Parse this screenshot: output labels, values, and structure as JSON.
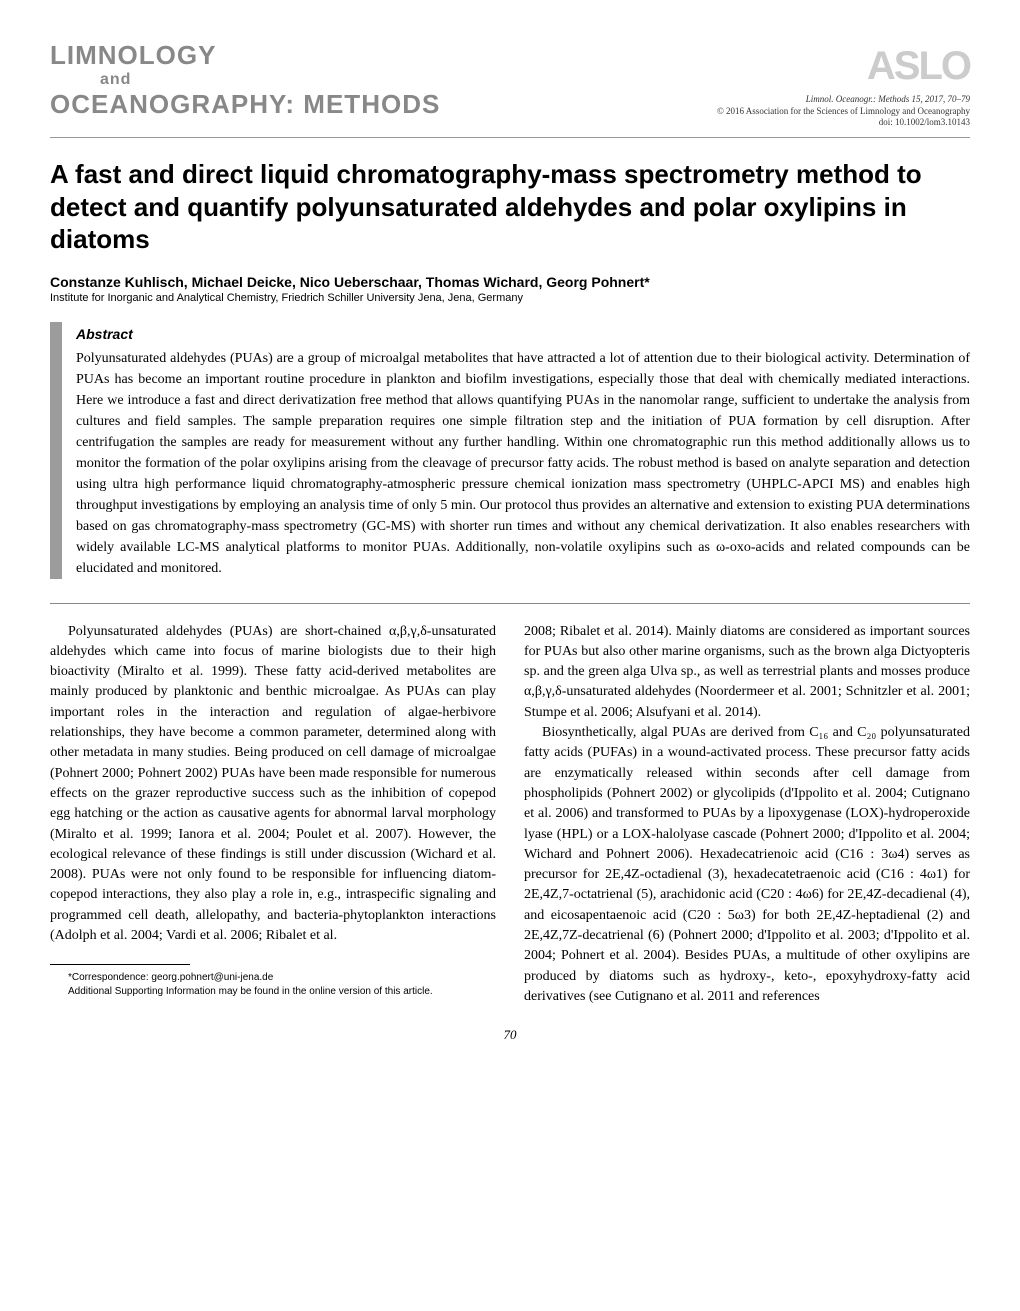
{
  "header": {
    "journal_line1": "LIMNOLOGY",
    "journal_and": "and",
    "journal_line2": "OCEANOGRAPHY: METHODS",
    "publisher_logo": "ASLO",
    "citation_line": "Limnol. Oceanogr.: Methods 15, 2017, 70–79",
    "copyright_line": "© 2016 Association for the Sciences of Limnology and Oceanography",
    "doi_line": "doi: 10.1002/lom3.10143"
  },
  "article": {
    "title": "A fast and direct liquid chromatography-mass spectrometry method to detect and quantify polyunsaturated aldehydes and polar oxylipins in diatoms",
    "authors": "Constanze Kuhlisch, Michael Deicke, Nico Ueberschaar, Thomas Wichard, Georg Pohnert*",
    "affiliation": "Institute for Inorganic and Analytical Chemistry, Friedrich Schiller University Jena, Jena, Germany"
  },
  "abstract": {
    "heading": "Abstract",
    "text": "Polyunsaturated aldehydes (PUAs) are a group of microalgal metabolites that have attracted a lot of attention due to their biological activity. Determination of PUAs has become an important routine procedure in plankton and biofilm investigations, especially those that deal with chemically mediated interactions. Here we introduce a fast and direct derivatization free method that allows quantifying PUAs in the nanomolar range, sufficient to undertake the analysis from cultures and field samples. The sample preparation requires one simple filtration step and the initiation of PUA formation by cell disruption. After centrifugation the samples are ready for measurement without any further handling. Within one chromatographic run this method additionally allows us to monitor the formation of the polar oxylipins arising from the cleavage of precursor fatty acids. The robust method is based on analyte separation and detection using ultra high performance liquid chromatography-atmospheric pressure chemical ionization mass spectrometry (UHPLC-APCI MS) and enables high throughput investigations by employing an analysis time of only 5 min. Our protocol thus provides an alternative and extension to existing PUA determinations based on gas chromatography-mass spectrometry (GC-MS) with shorter run times and without any chemical derivatization. It also enables researchers with widely available LC-MS analytical platforms to monitor PUAs. Additionally, non-volatile oxylipins such as ω-oxo-acids and related compounds can be elucidated and monitored."
  },
  "body": {
    "left_p1": "Polyunsaturated aldehydes (PUAs) are short-chained α,β,γ,δ-unsaturated aldehydes which came into focus of marine biologists due to their high bioactivity (Miralto et al. 1999). These fatty acid-derived metabolites are mainly produced by planktonic and benthic microalgae. As PUAs can play important roles in the interaction and regulation of algae-herbivore relationships, they have become a common parameter, determined along with other metadata in many studies. Being produced on cell damage of microalgae (Pohnert 2000; Pohnert 2002) PUAs have been made responsible for numerous effects on the grazer reproductive success such as the inhibition of copepod egg hatching or the action as causative agents for abnormal larval morphology (Miralto et al. 1999; Ianora et al. 2004; Poulet et al. 2007). However, the ecological relevance of these findings is still under discussion (Wichard et al. 2008). PUAs were not only found to be responsible for influencing diatom-copepod interactions, they also play a role in, e.g., intraspecific signaling and programmed cell death, allelopathy, and bacteria-phytoplankton interactions (Adolph et al. 2004; Vardi et al. 2006; Ribalet et al.",
    "right_p1": "2008; Ribalet et al. 2014). Mainly diatoms are considered as important sources for PUAs but also other marine organisms, such as the brown alga Dictyopteris sp. and the green alga Ulva sp., as well as terrestrial plants and mosses produce α,β,γ,δ-unsaturated aldehydes (Noordermeer et al. 2001; Schnitzler et al. 2001; Stumpe et al. 2006; Alsufyani et al. 2014).",
    "right_p2": "Biosynthetically, algal PUAs are derived from C₁₆ and C₂₀ polyunsaturated fatty acids (PUFAs) in a wound-activated process. These precursor fatty acids are enzymatically released within seconds after cell damage from phospholipids (Pohnert 2002) or glycolipids (d'Ippolito et al. 2004; Cutignano et al. 2006) and transformed to PUAs by a lipoxygenase (LOX)-hydroperoxide lyase (HPL) or a LOX-halolyase cascade (Pohnert 2000; d'Ippolito et al. 2004; Wichard and Pohnert 2006). Hexadecatrienoic acid (C16 : 3ω4) serves as precursor for 2E,4Z-octadienal (3), hexadecatetraenoic acid (C16 : 4ω1) for 2E,4Z,7-octatrienal (5), arachidonic acid (C20 : 4ω6) for 2E,4Z-decadienal (4), and eicosapentaenoic acid (C20 : 5ω3) for both 2E,4Z-heptadienal (2) and 2E,4Z,7Z-decatrienal (6) (Pohnert 2000; d'Ippolito et al. 2003; d'Ippolito et al. 2004; Pohnert et al. 2004). Besides PUAs, a multitude of other oxylipins are produced by diatoms such as hydroxy-, keto-, epoxyhydroxy-fatty acid derivatives (see Cutignano et al. 2011 and references"
  },
  "footnotes": {
    "correspondence": "*Correspondence: georg.pohnert@uni-jena.de",
    "supporting": "Additional Supporting Information may be found in the online version of this article."
  },
  "page_number": "70"
}
